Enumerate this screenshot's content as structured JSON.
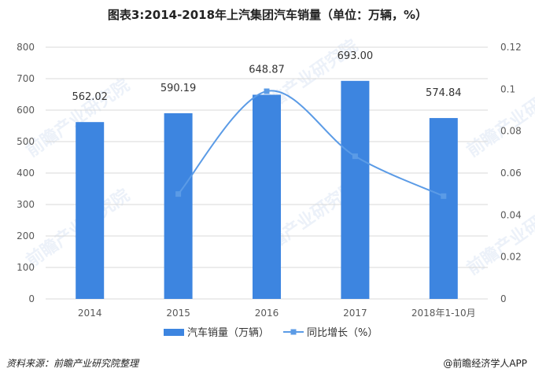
{
  "title": "图表3:2014-2018年上汽集团汽车销量（单位：万辆，%）",
  "footer": {
    "source": "资料来源：前瞻产业研究院整理",
    "brand": "@前瞻经济学人APP"
  },
  "watermark": "前瞻产业研究院",
  "colors": {
    "bar": "#3d85e0",
    "line": "#5b9be6",
    "grid": "#d9d9d9",
    "axis_text": "#595959"
  },
  "chart_data": {
    "type": "bar+line",
    "title": "图表3:2014-2018年上汽集团汽车销量（单位：万辆，%）",
    "categories": [
      "2014",
      "2015",
      "2016",
      "2017",
      "2018年1-10月"
    ],
    "series": [
      {
        "name": "汽车销量（万辆）",
        "type": "bar",
        "axis": "left",
        "values": [
          562.02,
          590.19,
          648.87,
          693.0,
          574.84
        ],
        "labels": [
          "562.02",
          "590.19",
          "648.87",
          "693.00",
          "574.84"
        ]
      },
      {
        "name": "同比增长（%）",
        "type": "line",
        "axis": "right",
        "values": [
          null,
          0.05,
          0.099,
          0.068,
          0.049
        ]
      }
    ],
    "y_left": {
      "min": 0,
      "max": 800,
      "ticks": [
        "0",
        "100",
        "200",
        "300",
        "400",
        "500",
        "600",
        "700",
        "800"
      ]
    },
    "y_right": {
      "min": 0,
      "max": 0.12,
      "ticks": [
        "0",
        "0.02",
        "0.04",
        "0.06",
        "0.08",
        "0.1",
        "0.12"
      ]
    },
    "grid": true,
    "legend_position": "bottom"
  }
}
